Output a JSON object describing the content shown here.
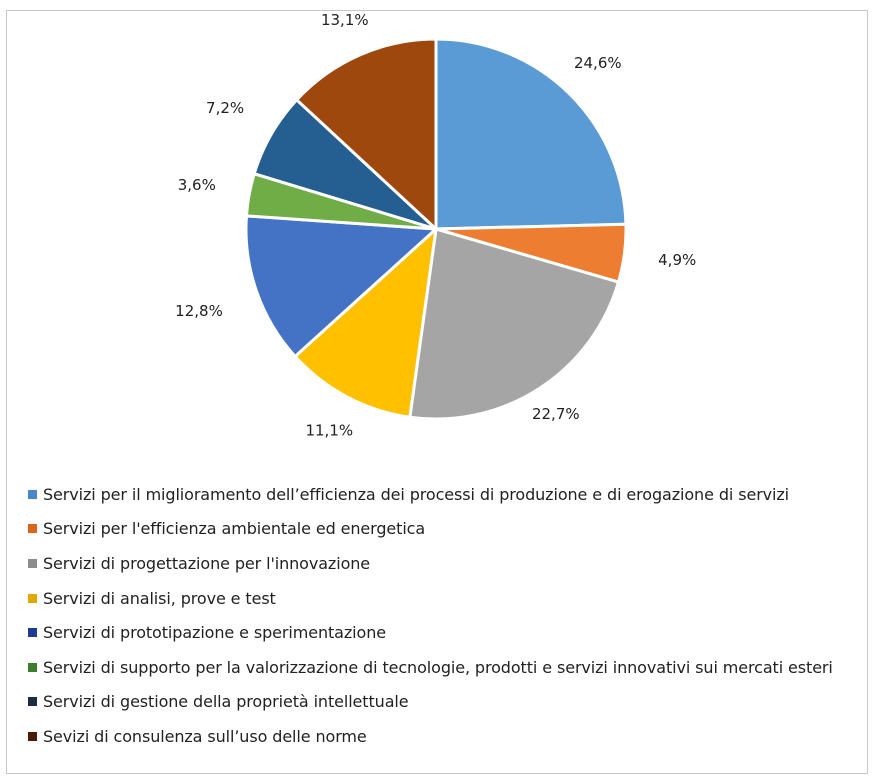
{
  "chart_data": {
    "type": "pie",
    "title": "",
    "legend_position": "bottom",
    "categories": [
      "Servizi per il miglioramento dell’efficienza dei processi di produzione e di erogazione di servizi",
      "Servizi per l'efficienza ambientale ed energetica",
      "Servizi di progettazione per l'innovazione",
      "Servizi di analisi, prove e test",
      "Servizi di prototipazione e sperimentazione",
      "Servizi di supporto per la valorizzazione di tecnologie, prodotti e servizi innovativi sui mercati esteri",
      "Servizi di gestione della proprietà intellettuale",
      "Sevizi di consulenza sull’uso delle norme"
    ],
    "values": [
      24.6,
      4.9,
      22.7,
      11.1,
      12.8,
      3.6,
      7.2,
      13.1
    ],
    "value_labels": [
      "24,6%",
      "4,9%",
      "22,7%",
      "11,1%",
      "12,8%",
      "3,6%",
      "7,2%",
      "13,1%"
    ],
    "colors": [
      "#5b9bd5",
      "#ed7d31",
      "#a5a5a5",
      "#ffc000",
      "#4472c4",
      "#70ad47",
      "#255e91",
      "#9e480e"
    ],
    "legend_swatch_colors": [
      "#4a86c8",
      "#d9661f",
      "#8c8c8c",
      "#e0a800",
      "#1f3a93",
      "#3a7d2a",
      "#1c2a44",
      "#4a1a0a"
    ]
  }
}
